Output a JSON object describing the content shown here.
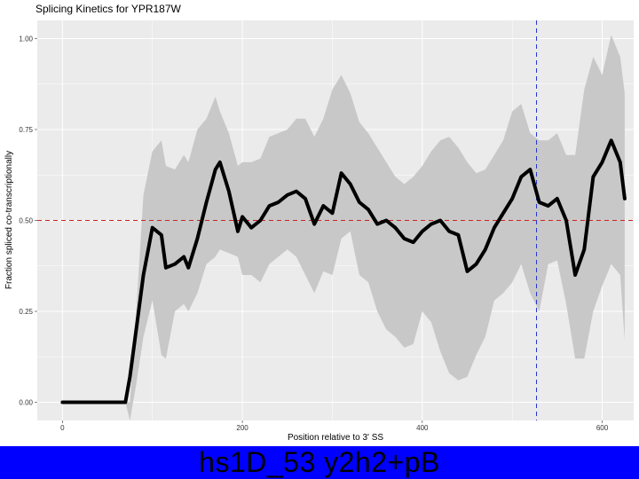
{
  "chart_data": {
    "type": "line",
    "title": "Splicing Kinetics for YPR187W",
    "xlabel": "Position relative to 3' SS",
    "ylabel": "Fraction spliced co-transcriptionally",
    "xlim": [
      -28,
      635
    ],
    "ylim": [
      -0.05,
      1.05
    ],
    "xticks": [
      0,
      200,
      400,
      600
    ],
    "yticks": [
      0.0,
      0.25,
      0.5,
      0.75,
      1.0
    ],
    "ytick_labels": [
      "0.00",
      "0.25",
      "0.50",
      "0.75",
      "1.00"
    ],
    "grid": true,
    "reference_lines": [
      {
        "orientation": "horizontal",
        "value": 0.5,
        "style": "dashed",
        "color": "#cc2222"
      },
      {
        "orientation": "vertical",
        "value": 527,
        "style": "dashed",
        "color": "#2233cc"
      }
    ],
    "series": [
      {
        "x": [
          0,
          70,
          75,
          82,
          90,
          100,
          110,
          115,
          125,
          135,
          140,
          150,
          160,
          170,
          175,
          185,
          195,
          200,
          210,
          220,
          230,
          240,
          250,
          260,
          270,
          280,
          290,
          300,
          310,
          320,
          330,
          340,
          350,
          360,
          370,
          380,
          390,
          400,
          410,
          420,
          430,
          440,
          450,
          460,
          470,
          480,
          490,
          500,
          510,
          520,
          530,
          540,
          550,
          560,
          570,
          580,
          590,
          600,
          610,
          620,
          625
        ],
        "y": [
          0.0,
          0.0,
          0.07,
          0.2,
          0.35,
          0.48,
          0.46,
          0.37,
          0.38,
          0.4,
          0.37,
          0.45,
          0.55,
          0.64,
          0.66,
          0.58,
          0.47,
          0.51,
          0.48,
          0.5,
          0.54,
          0.55,
          0.57,
          0.58,
          0.56,
          0.49,
          0.54,
          0.52,
          0.63,
          0.6,
          0.55,
          0.53,
          0.49,
          0.5,
          0.48,
          0.45,
          0.44,
          0.47,
          0.49,
          0.5,
          0.47,
          0.46,
          0.36,
          0.38,
          0.42,
          0.48,
          0.52,
          0.56,
          0.62,
          0.64,
          0.55,
          0.54,
          0.56,
          0.5,
          0.35,
          0.42,
          0.62,
          0.66,
          0.72,
          0.66,
          0.56
        ],
        "ci_lower": [
          0.0,
          0.0,
          -0.05,
          0.05,
          0.18,
          0.28,
          0.13,
          0.12,
          0.25,
          0.27,
          0.25,
          0.3,
          0.38,
          0.4,
          0.42,
          0.41,
          0.4,
          0.35,
          0.35,
          0.33,
          0.38,
          0.4,
          0.42,
          0.4,
          0.35,
          0.3,
          0.36,
          0.35,
          0.45,
          0.47,
          0.35,
          0.33,
          0.25,
          0.2,
          0.18,
          0.15,
          0.16,
          0.25,
          0.22,
          0.14,
          0.08,
          0.06,
          0.07,
          0.13,
          0.18,
          0.28,
          0.3,
          0.33,
          0.38,
          0.3,
          0.25,
          0.38,
          0.39,
          0.27,
          0.12,
          0.12,
          0.25,
          0.32,
          0.38,
          0.35,
          0.17
        ],
        "ci_upper": [
          0.0,
          0.0,
          0.0,
          0.25,
          0.57,
          0.69,
          0.72,
          0.65,
          0.64,
          0.68,
          0.66,
          0.75,
          0.78,
          0.84,
          0.8,
          0.74,
          0.65,
          0.66,
          0.66,
          0.67,
          0.73,
          0.74,
          0.75,
          0.78,
          0.78,
          0.73,
          0.78,
          0.86,
          0.9,
          0.85,
          0.77,
          0.74,
          0.7,
          0.66,
          0.62,
          0.6,
          0.62,
          0.65,
          0.69,
          0.72,
          0.73,
          0.7,
          0.66,
          0.63,
          0.64,
          0.68,
          0.72,
          0.8,
          0.82,
          0.74,
          0.72,
          0.72,
          0.74,
          0.68,
          0.68,
          0.86,
          0.95,
          0.9,
          1.01,
          0.95,
          0.85
        ]
      }
    ]
  },
  "caption": {
    "text": "hs1D_53 y2h2+pB",
    "background": "#0000ff"
  },
  "colors": {
    "panel": "#ebebeb",
    "grid": "#ffffff",
    "band": "#c8c8c8",
    "line": "#000000"
  }
}
